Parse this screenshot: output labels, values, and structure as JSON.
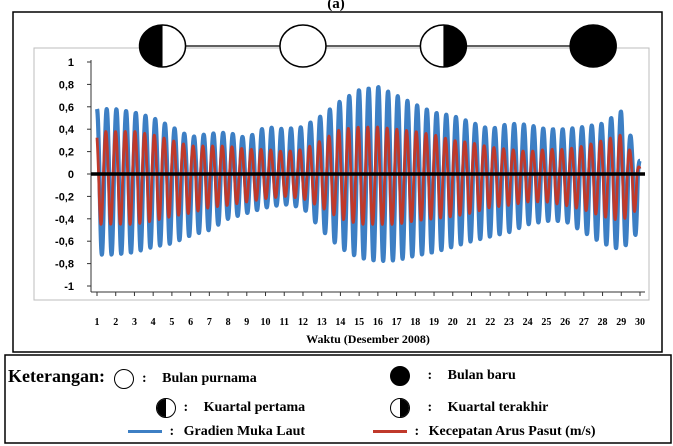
{
  "figure_label": "(a)",
  "chart_data": {
    "type": "line",
    "title": "",
    "xlabel": "Waktu (Desember 2008)",
    "ylabel": "",
    "xlim": [
      1,
      30
    ],
    "ylim": [
      -1,
      1
    ],
    "x_ticks": [
      "1",
      "2",
      "3",
      "4",
      "5",
      "6",
      "7",
      "8",
      "9",
      "10",
      "11",
      "12",
      "13",
      "14",
      "15",
      "16",
      "17",
      "18",
      "19",
      "20",
      "21",
      "22",
      "23",
      "24",
      "25",
      "26",
      "27",
      "28",
      "29",
      "30"
    ],
    "y_ticks": [
      "1",
      "0,8",
      "0,6",
      "0,4",
      "0,2",
      "0",
      "-0,2",
      "-0,4",
      "-0,6",
      "-0,8",
      "-1"
    ],
    "grid": false,
    "moon_phases": [
      {
        "day": 4.5,
        "phase": "first-quarter-icon"
      },
      {
        "day": 12.0,
        "phase": "full-moon-icon"
      },
      {
        "day": 19.5,
        "phase": "last-quarter-icon"
      },
      {
        "day": 27.5,
        "phase": "new-moon-icon"
      }
    ],
    "series": [
      {
        "name": "Gradien Muka Laut",
        "color": "#3d7fc4",
        "envelope_days": [
          1,
          2,
          3,
          4,
          5,
          6,
          7,
          8,
          9,
          10,
          11,
          12,
          13,
          14,
          15,
          16,
          17,
          18,
          19,
          20,
          21,
          22,
          23,
          24,
          25,
          26,
          27,
          28,
          29,
          30
        ],
        "max": [
          0.58,
          0.58,
          0.55,
          0.5,
          0.42,
          0.33,
          0.36,
          0.37,
          0.32,
          0.42,
          0.4,
          0.42,
          0.52,
          0.65,
          0.75,
          0.78,
          0.7,
          0.62,
          0.55,
          0.52,
          0.46,
          0.4,
          0.45,
          0.44,
          0.4,
          0.4,
          0.42,
          0.45,
          0.56,
          0.12
        ],
        "min": [
          -0.72,
          -0.72,
          -0.7,
          -0.65,
          -0.62,
          -0.55,
          -0.5,
          -0.4,
          -0.35,
          -0.3,
          -0.27,
          -0.3,
          -0.5,
          -0.66,
          -0.75,
          -0.78,
          -0.77,
          -0.73,
          -0.7,
          -0.65,
          -0.6,
          -0.56,
          -0.52,
          -0.45,
          -0.42,
          -0.42,
          -0.52,
          -0.62,
          -0.68,
          -0.5
        ]
      },
      {
        "name": "Kecepatan Arus Pasut (m/s)",
        "color": "#c0392b",
        "envelope_days": [
          1,
          2,
          3,
          4,
          5,
          6,
          7,
          8,
          9,
          10,
          11,
          12,
          13,
          14,
          15,
          16,
          17,
          18,
          19,
          20,
          21,
          22,
          23,
          24,
          25,
          26,
          27,
          28,
          29,
          30
        ],
        "max": [
          0.38,
          0.38,
          0.38,
          0.35,
          0.3,
          0.25,
          0.25,
          0.25,
          0.22,
          0.22,
          0.2,
          0.22,
          0.3,
          0.4,
          0.42,
          0.42,
          0.4,
          0.38,
          0.35,
          0.3,
          0.28,
          0.24,
          0.22,
          0.2,
          0.22,
          0.22,
          0.25,
          0.3,
          0.35,
          0.05
        ],
        "min": [
          -0.45,
          -0.45,
          -0.45,
          -0.42,
          -0.38,
          -0.35,
          -0.3,
          -0.28,
          -0.25,
          -0.22,
          -0.2,
          -0.22,
          -0.3,
          -0.4,
          -0.45,
          -0.45,
          -0.45,
          -0.42,
          -0.4,
          -0.38,
          -0.35,
          -0.3,
          -0.28,
          -0.25,
          -0.25,
          -0.28,
          -0.32,
          -0.38,
          -0.42,
          -0.3
        ]
      }
    ]
  },
  "legend": {
    "heading": "Keterangan:",
    "colon": ":",
    "full_moon": "Bulan purnama",
    "new_moon": "Bulan baru",
    "first_quarter": "Kuartal pertama",
    "last_quarter": "Kuartal terakhir",
    "series_1": "Gradien Muka Laut",
    "series_2": "Kecepatan Arus Pasut (m/s)"
  }
}
